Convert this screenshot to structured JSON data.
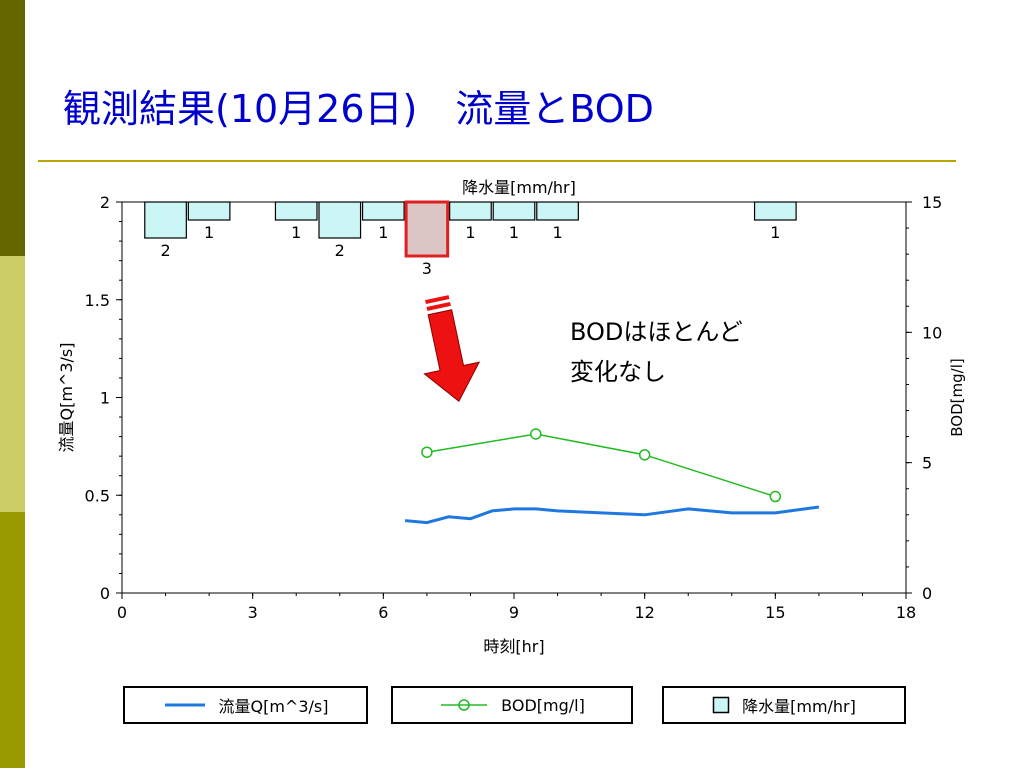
{
  "slide": {
    "title": "観測結果(10月26日)　流量とBOD"
  },
  "annotation": {
    "line1": "BODはほとんど",
    "line2": "変化なし"
  },
  "colors": {
    "flow": "#1e78e0",
    "bod": "#22bb22",
    "rain_fill": "#ccf5f5",
    "rain_highlight_fill": "#dcc5c5",
    "rain_highlight_stroke": "#e02020",
    "arrow": "#ee1111",
    "title": "#0000cc"
  },
  "legend": {
    "flow_label": "流量Q[m^3/s]",
    "bod_label": "BOD[mg/l]",
    "rain_label": "降水量[mm/hr]"
  },
  "chart_data": {
    "type": "line",
    "x_label": "時刻[hr]",
    "x_range": [
      0,
      18
    ],
    "x_ticks": [
      0,
      3,
      6,
      9,
      12,
      15,
      18
    ],
    "y_left_label": "流量Q[m^3/s]",
    "y_left_range": [
      0,
      2
    ],
    "y_left_ticks": [
      "0",
      "0.5",
      "1",
      "1.5",
      "2"
    ],
    "y_right_label": "BOD[mg/l]",
    "y_right_range": [
      0,
      15
    ],
    "y_right_ticks": [
      "0",
      "5",
      "10",
      "15"
    ],
    "rain_label": "降水量[mm/hr]",
    "rain_bars": [
      {
        "x": 1,
        "value": 2,
        "label": "2"
      },
      {
        "x": 2,
        "value": 1,
        "label": "1"
      },
      {
        "x": 4,
        "value": 1,
        "label": "1"
      },
      {
        "x": 5,
        "value": 2,
        "label": "2"
      },
      {
        "x": 6,
        "value": 1,
        "label": "1"
      },
      {
        "x": 7,
        "value": 3,
        "label": "3",
        "highlight": true
      },
      {
        "x": 8,
        "value": 1,
        "label": "1"
      },
      {
        "x": 9,
        "value": 1,
        "label": "1"
      },
      {
        "x": 10,
        "value": 1,
        "label": "1"
      },
      {
        "x": 15,
        "value": 1,
        "label": "1"
      }
    ],
    "series": [
      {
        "name": "流量Q[m^3/s]",
        "axis": "left",
        "marker": "none",
        "points": [
          [
            6.5,
            0.37
          ],
          [
            7,
            0.36
          ],
          [
            7.5,
            0.39
          ],
          [
            8,
            0.38
          ],
          [
            8.5,
            0.42
          ],
          [
            9,
            0.43
          ],
          [
            9.5,
            0.43
          ],
          [
            10,
            0.42
          ],
          [
            11,
            0.41
          ],
          [
            12,
            0.4
          ],
          [
            13,
            0.43
          ],
          [
            14,
            0.41
          ],
          [
            15,
            0.41
          ],
          [
            16,
            0.44
          ]
        ]
      },
      {
        "name": "BOD[mg/l]",
        "axis": "right",
        "marker": "circle",
        "points": [
          [
            7,
            5.4
          ],
          [
            9.5,
            6.1
          ],
          [
            12,
            5.3
          ],
          [
            15,
            3.7
          ]
        ]
      }
    ]
  }
}
